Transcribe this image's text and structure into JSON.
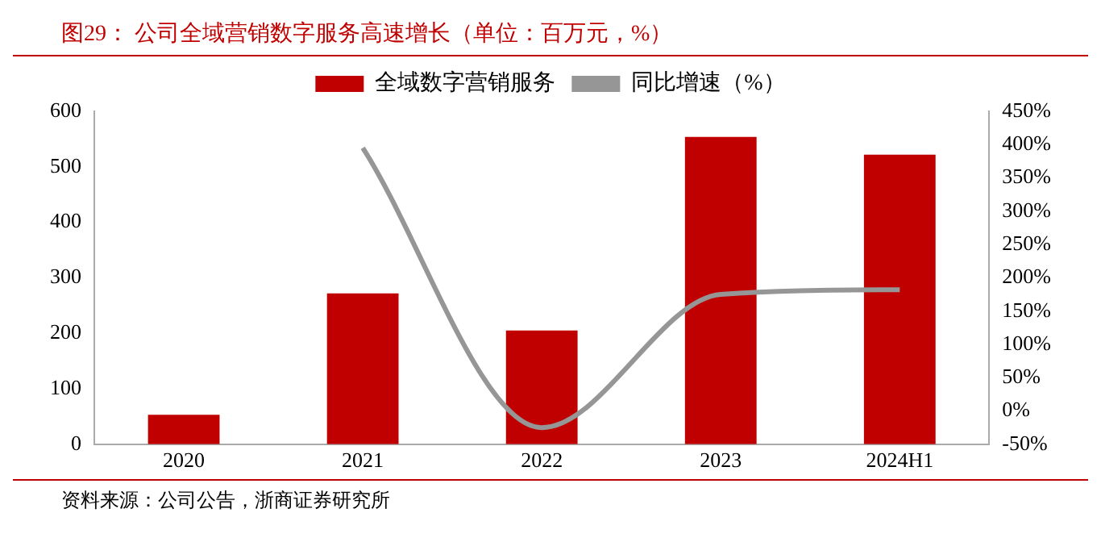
{
  "chart_data": {
    "type": "bar",
    "title": "图29：  公司全域营销数字服务高速增长（单位：百万元，%）",
    "categories": [
      "2020",
      "2021",
      "2022",
      "2023",
      "2024H1"
    ],
    "series": [
      {
        "name": "全域数字营销服务",
        "color": "#c00000",
        "values": [
          53,
          272,
          205,
          554,
          522
        ]
      },
      {
        "name": "同比增速（%）",
        "type": "line",
        "axis": "y2",
        "color": "#969696",
        "values": [
          null,
          395,
          -25,
          175,
          182
        ]
      }
    ],
    "ylim": [
      0,
      600
    ],
    "yticks": [
      0,
      100,
      200,
      300,
      400,
      500,
      600
    ],
    "y2lim": [
      -50,
      450
    ],
    "y2ticks": [
      {
        "value": -50,
        "label": "-50%"
      },
      {
        "value": 0,
        "label": "0%"
      },
      {
        "value": 50,
        "label": "50%"
      },
      {
        "value": 100,
        "label": "100%"
      },
      {
        "value": 150,
        "label": "150%"
      },
      {
        "value": 200,
        "label": "200%"
      },
      {
        "value": 250,
        "label": "250%"
      },
      {
        "value": 300,
        "label": "300%"
      },
      {
        "value": 350,
        "label": "350%"
      },
      {
        "value": 400,
        "label": "400%"
      },
      {
        "value": 450,
        "label": "450%"
      }
    ],
    "legend": "top",
    "grid": false,
    "marker": "none",
    "annotations": [
      "资料来源：公司公告，浙商证券研究所"
    ]
  }
}
